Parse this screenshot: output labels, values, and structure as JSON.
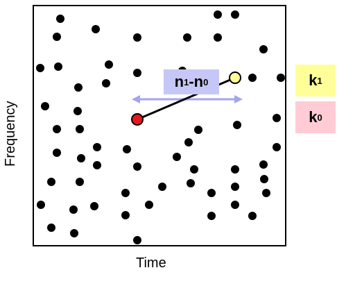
{
  "axes": {
    "x_label": "Time",
    "y_label": "Frequency"
  },
  "colors": {
    "point": "#000000",
    "anchor_fill": "#e8171c",
    "target_fill": "#ffff99",
    "arrow": "#a4a4f0",
    "diff_label_bg": "#c7c7f7",
    "k1_bg": "#ffff99",
    "k0_bg": "#ffccd5"
  },
  "labels": {
    "k1": {
      "base": "k",
      "sub": "1"
    },
    "k0": {
      "base": "k",
      "sub": "0"
    },
    "diff": {
      "a": "n",
      "a_sub": "1",
      "sep": "-",
      "b": "n",
      "b_sub": "0"
    }
  }
}
